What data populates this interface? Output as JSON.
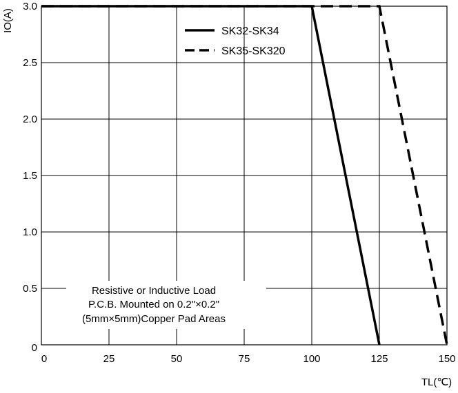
{
  "chart_data": {
    "type": "line",
    "title": "",
    "xlabel": "TL(℃)",
    "ylabel": "IO(A)",
    "xlim": [
      0,
      150
    ],
    "ylim": [
      0,
      3.0
    ],
    "x_ticks": [
      "0",
      "25",
      "50",
      "75",
      "100",
      "125",
      "150"
    ],
    "y_ticks": [
      "0",
      "0.5",
      "1.0",
      "1.5",
      "2.0",
      "2.5",
      "3.0"
    ],
    "grid": true,
    "legend_position": "top-right",
    "series": [
      {
        "name": "SK32-SK34",
        "style": "solid",
        "x": [
          0,
          100,
          125
        ],
        "y": [
          3.0,
          3.0,
          0
        ]
      },
      {
        "name": "SK35-SK320",
        "style": "dashed",
        "x": [
          0,
          125,
          150
        ],
        "y": [
          3.0,
          3.0,
          0
        ]
      }
    ],
    "annotation": [
      "Resistive or Inductive Load",
      "P.C.B. Mounted on 0.2\"×0.2\"",
      "(5mm×5mm)Copper Pad Areas"
    ],
    "colors": {
      "line": "#000000",
      "grid": "#000000",
      "background": "#ffffff"
    }
  }
}
